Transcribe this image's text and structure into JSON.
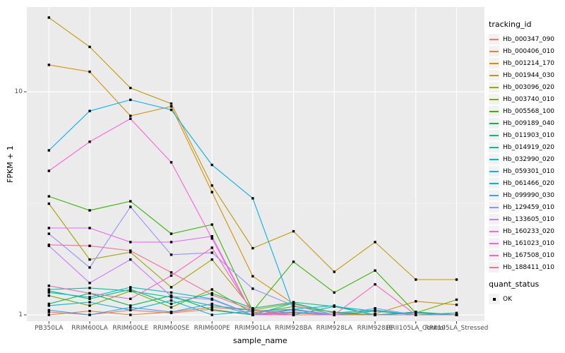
{
  "chart_data": {
    "type": "line",
    "title": "",
    "xlabel": "sample_name",
    "ylabel": "FPKM + 1",
    "y_scale": "log10",
    "ylim": [
      0.93,
      25
    ],
    "y_ticks": [
      {
        "label": "10",
        "value": 10
      },
      {
        "label": "1",
        "value": 1
      }
    ],
    "y_minor_breaks": [
      3.162
    ],
    "grid": true,
    "legend_position": "right",
    "categories": [
      "PB350LA",
      "RRIM600LA",
      "RRIM600LE",
      "RRIM600SE",
      "RRIM600PE",
      "RRIM901LA",
      "RRIM928BA",
      "RRIM928LA",
      "RRIM928LE",
      "RRII105LA_Control",
      "RRII105LA_Stressed"
    ],
    "series": [
      {
        "name": "Hb_000347_090",
        "color": "#F8766D",
        "values": [
          1.03,
          1.0,
          1.05,
          1.02,
          1.06,
          1.0,
          1.02,
          1.0,
          1.0,
          1.0,
          1.0
        ]
      },
      {
        "name": "Hb_000406_010",
        "color": "#EA8331",
        "values": [
          1.0,
          1.04,
          1.0,
          1.03,
          1.08,
          1.05,
          1.02,
          1.0,
          1.0,
          1.03,
          1.0
        ]
      },
      {
        "name": "Hb_001214_170",
        "color": "#D89000",
        "values": [
          13.2,
          12.3,
          7.8,
          8.6,
          3.55,
          1.49,
          1.12,
          1.0,
          1.01,
          1.15,
          1.11
        ]
      },
      {
        "name": "Hb_001944_030",
        "color": "#C09B00",
        "values": [
          21.5,
          15.9,
          10.4,
          8.85,
          3.8,
          1.99,
          2.37,
          1.56,
          2.12,
          1.44,
          1.44
        ]
      },
      {
        "name": "Hb_003096_020",
        "color": "#A3A500",
        "values": [
          3.15,
          1.77,
          1.91,
          1.33,
          1.77,
          1.05,
          1.13,
          1.02,
          1.0,
          1.0,
          1.0
        ]
      },
      {
        "name": "Hb_003740_010",
        "color": "#7CAE00",
        "values": [
          1.22,
          1.1,
          1.28,
          1.08,
          1.3,
          1.02,
          1.09,
          1.03,
          1.0,
          1.02,
          1.17
        ]
      },
      {
        "name": "Hb_005568_100",
        "color": "#39B600",
        "values": [
          3.4,
          2.94,
          3.23,
          2.31,
          2.54,
          1.04,
          1.73,
          1.26,
          1.58,
          1.02,
          1.0
        ]
      },
      {
        "name": "Hb_009189_040",
        "color": "#00BB4E",
        "values": [
          1.12,
          1.25,
          1.1,
          1.22,
          1.05,
          1.0,
          1.06,
          1.0,
          1.04,
          1.0,
          1.0
        ]
      },
      {
        "name": "Hb_011903_010",
        "color": "#00BF7D",
        "values": [
          1.28,
          1.18,
          1.3,
          1.12,
          1.25,
          1.07,
          1.14,
          1.09,
          1.0,
          1.03,
          1.0
        ]
      },
      {
        "name": "Hb_014919_020",
        "color": "#00C1A3",
        "values": [
          1.3,
          1.32,
          1.28,
          1.2,
          1.1,
          1.05,
          1.0,
          1.09,
          1.04,
          1.0,
          1.02
        ]
      },
      {
        "name": "Hb_032990_020",
        "color": "#00BFC4",
        "values": [
          1.26,
          1.2,
          1.33,
          1.26,
          1.18,
          1.0,
          1.13,
          1.02,
          1.05,
          1.0,
          1.0
        ]
      },
      {
        "name": "Hb_059301_010",
        "color": "#00BAE0",
        "values": [
          1.1,
          1.14,
          1.05,
          1.16,
          1.0,
          1.04,
          1.06,
          1.1,
          1.0,
          1.02,
          1.0
        ]
      },
      {
        "name": "Hb_061466_020",
        "color": "#00B0F6",
        "values": [
          5.46,
          8.2,
          9.2,
          8.3,
          4.7,
          3.33,
          1.05,
          1.0,
          1.0,
          1.0,
          1.0
        ]
      },
      {
        "name": "Hb_099990_030",
        "color": "#35A2FF",
        "values": [
          1.05,
          1.0,
          1.08,
          1.03,
          1.12,
          1.0,
          1.03,
          1.0,
          1.0,
          1.0,
          1.0
        ]
      },
      {
        "name": "Hb_129459_010",
        "color": "#9590FF",
        "values": [
          2.31,
          1.63,
          3.05,
          1.86,
          1.9,
          1.31,
          1.1,
          1.0,
          1.07,
          1.0,
          1.0
        ]
      },
      {
        "name": "Hb_133605_010",
        "color": "#C77CFF",
        "values": [
          2.04,
          1.39,
          1.77,
          1.21,
          1.17,
          1.0,
          1.05,
          1.0,
          1.0,
          1.0,
          1.0
        ]
      },
      {
        "name": "Hb_160233_020",
        "color": "#E76BF3",
        "values": [
          2.45,
          2.45,
          2.12,
          2.12,
          2.25,
          1.0,
          1.0,
          1.0,
          1.0,
          1.0,
          1.0
        ]
      },
      {
        "name": "Hb_161023_010",
        "color": "#FA62DB",
        "values": [
          4.42,
          5.97,
          7.57,
          4.83,
          2.2,
          1.0,
          1.0,
          1.0,
          1.0,
          1.0,
          1.0
        ]
      },
      {
        "name": "Hb_167508_010",
        "color": "#FF62BC",
        "values": [
          1.35,
          1.25,
          1.18,
          1.5,
          2.0,
          1.02,
          1.0,
          1.0,
          1.37,
          1.0,
          1.0
        ]
      },
      {
        "name": "Hb_188411_010",
        "color": "#FF6A98",
        "values": [
          2.06,
          2.04,
          1.94,
          1.55,
          1.23,
          1.05,
          1.0,
          1.0,
          1.0,
          1.0,
          1.0
        ]
      }
    ],
    "legend": {
      "tracking_title": "tracking_id",
      "quant_title": "quant_status",
      "quant_ok_label": "OK"
    },
    "point_shape": "square",
    "point_color": "#000000"
  },
  "colors": {
    "panel_bg": "#EBEBEB",
    "grid": "#FFFFFF",
    "axis_text": "#4D4D4D",
    "tick_mark": "#333333"
  }
}
